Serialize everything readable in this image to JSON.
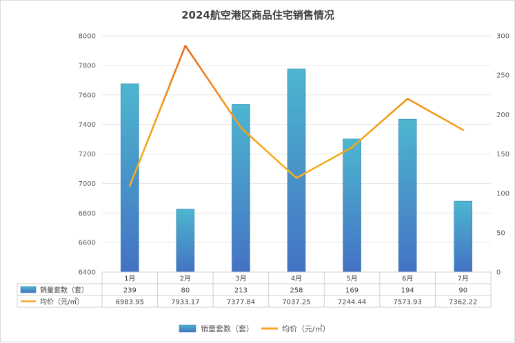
{
  "chart_data": {
    "type": "bar+line",
    "title": "2024航空港区商品住宅销售情况",
    "categories": [
      "1月",
      "2月",
      "3月",
      "4月",
      "5月",
      "6月",
      "7月"
    ],
    "series": [
      {
        "name": "销量套数（套）",
        "type": "bar",
        "axis": "right",
        "values": [
          239,
          80,
          213,
          258,
          169,
          194,
          90
        ],
        "value_labels": [
          "239",
          "80",
          "213",
          "258",
          "169",
          "194",
          "90"
        ],
        "color": "#4aacc6"
      },
      {
        "name": "均价（元/㎡）",
        "type": "line",
        "axis": "left",
        "values": [
          6983.95,
          7933.17,
          7377.84,
          7037.25,
          7244.44,
          7573.93,
          7362.22
        ],
        "value_labels": [
          "6983.95",
          "7933.17",
          "7377.84",
          "7037.25",
          "7244.44",
          "7573.93",
          "7362.22"
        ],
        "color": "#f5a623"
      }
    ],
    "y_left": {
      "min": 6400,
      "max": 8000,
      "step": 200,
      "tick_labels": [
        "6400",
        "6600",
        "6800",
        "7000",
        "7200",
        "7400",
        "7600",
        "7800",
        "8000"
      ]
    },
    "y_right": {
      "min": 0,
      "max": 300,
      "step": 50,
      "tick_labels": [
        "0",
        "50",
        "100",
        "150",
        "200",
        "250",
        "300"
      ]
    },
    "grid": true,
    "data_table": true,
    "legend_position": "bottom"
  }
}
